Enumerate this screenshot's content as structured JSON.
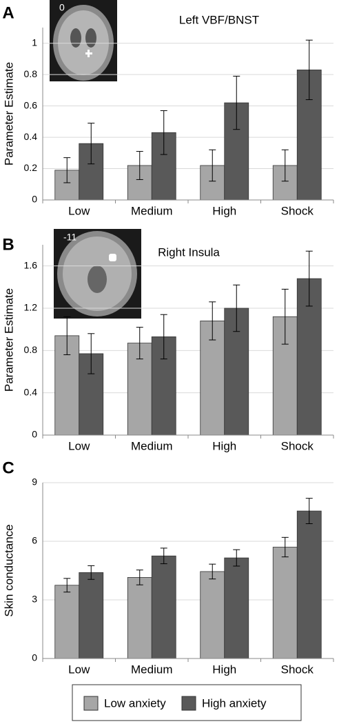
{
  "chart_data": [
    {
      "type": "bar",
      "panel_label": "A",
      "inset_label": "0",
      "title": "Left VBF/BNST",
      "y_label": "Parameter Estimate",
      "categories": [
        "Low",
        "Medium",
        "High",
        "Shock"
      ],
      "series": [
        {
          "color": "#a6a6a6",
          "values": [
            0.19,
            0.22,
            0.22,
            0.22
          ],
          "errors": [
            0.08,
            0.09,
            0.1,
            0.1
          ]
        },
        {
          "color": "#595959",
          "values": [
            0.36,
            0.43,
            0.62,
            0.83
          ],
          "errors": [
            0.13,
            0.14,
            0.17,
            0.19
          ]
        }
      ],
      "ylim": [
        0,
        1.1
      ],
      "yticks": [
        0,
        0.2,
        0.4,
        0.6,
        0.8,
        1
      ],
      "grid": true
    },
    {
      "type": "bar",
      "panel_label": "B",
      "inset_label": "-11",
      "title": "Right Insula",
      "y_label": "Parameter Estimate",
      "categories": [
        "Low",
        "Medium",
        "High",
        "Shock"
      ],
      "series": [
        {
          "color": "#a6a6a6",
          "values": [
            0.94,
            0.87,
            1.08,
            1.12
          ],
          "errors": [
            0.18,
            0.15,
            0.18,
            0.26
          ]
        },
        {
          "color": "#595959",
          "values": [
            0.77,
            0.93,
            1.2,
            1.48
          ],
          "errors": [
            0.19,
            0.21,
            0.22,
            0.26
          ]
        }
      ],
      "ylim": [
        0,
        1.8
      ],
      "yticks": [
        0,
        0.4,
        0.8,
        1.2,
        1.6
      ],
      "grid": true
    },
    {
      "type": "bar",
      "panel_label": "C",
      "y_label": "Skin conductance",
      "categories": [
        "Low",
        "Medium",
        "High",
        "Shock"
      ],
      "series": [
        {
          "name": "Low anxiety",
          "color": "#a6a6a6",
          "values": [
            3.75,
            4.15,
            4.45,
            5.7
          ],
          "errors": [
            0.35,
            0.38,
            0.38,
            0.5
          ]
        },
        {
          "name": "High anxiety",
          "color": "#595959",
          "values": [
            4.4,
            5.25,
            5.15,
            7.55
          ],
          "errors": [
            0.35,
            0.4,
            0.42,
            0.65
          ]
        }
      ],
      "ylim": [
        0,
        9
      ],
      "yticks": [
        0,
        3,
        6,
        9
      ],
      "grid": true,
      "legend": "bottom"
    }
  ]
}
